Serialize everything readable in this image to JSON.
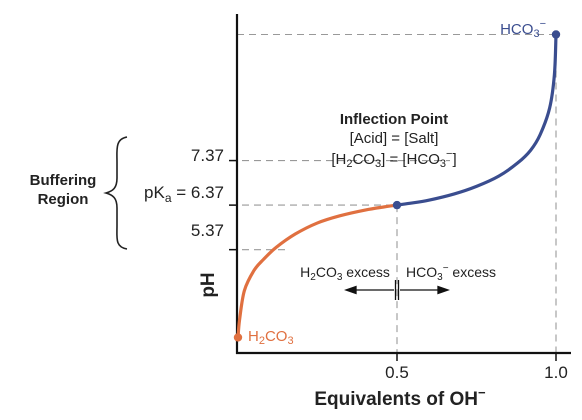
{
  "chart_data": {
    "type": "line",
    "xlabel_main": "Equivalents of OH",
    "xlabel_sup": "−",
    "ylabel": "pH",
    "x_ticks": [
      {
        "value": 0.5,
        "label": "0.5"
      },
      {
        "value": 1.0,
        "label": "1.0"
      }
    ],
    "y_ticks": [
      {
        "value": 7.37,
        "label": "7.37"
      },
      {
        "value": 5.37,
        "label": "5.37"
      }
    ],
    "pka": {
      "prefix": "pK",
      "sub": "a",
      "suffix": " = 6.37",
      "value": 6.37
    },
    "series": [
      {
        "color": "#e07040",
        "x": [
          0.0,
          0.005,
          0.02,
          0.05,
          0.08,
          0.12,
          0.18,
          0.25,
          0.32,
          0.4,
          0.46,
          0.5
        ],
        "y": [
          3.4,
          3.8,
          4.45,
          4.9,
          5.15,
          5.42,
          5.72,
          5.97,
          6.13,
          6.26,
          6.33,
          6.37
        ]
      },
      {
        "color": "#3a4d8f",
        "x": [
          0.5,
          0.54,
          0.6,
          0.68,
          0.75,
          0.82,
          0.88,
          0.92,
          0.95,
          0.98,
          0.995,
          1.0
        ],
        "y": [
          6.37,
          6.41,
          6.48,
          6.62,
          6.79,
          7.02,
          7.32,
          7.6,
          7.95,
          8.55,
          9.3,
          10.2
        ]
      }
    ],
    "points": [
      {
        "name": "start",
        "x": 0.0,
        "y": 3.4,
        "color": "#e07040"
      },
      {
        "name": "inflection",
        "x": 0.5,
        "y": 6.37,
        "color": "#3a4d8f"
      },
      {
        "name": "end",
        "x": 1.0,
        "y": 10.2,
        "color": "#3a4d8f"
      }
    ],
    "xlim": [
      0,
      1.0
    ],
    "ylim": [
      3.05,
      10.75
    ],
    "colors": {
      "acid": "#e07040",
      "base": "#3a4d8f",
      "guide": "#999999"
    }
  },
  "labels": {
    "start_label": {
      "a": "H",
      "sub": "2",
      "b": "CO",
      "sub2": "3"
    },
    "end_label": {
      "a": "HCO",
      "sub": "3",
      "sup": "−"
    },
    "buffering_line1": "Buffering",
    "buffering_line2": "Region",
    "inflection_title": "Inflection Point",
    "inflection_eq1": "[Acid] = [Salt]",
    "inflection_eq2": {
      "a": "[H",
      "s1": "2",
      "b": "CO",
      "s2": "3",
      "c": "] = [HCO",
      "s3": "3",
      "sup": "−",
      "d": "]"
    },
    "excess_left": {
      "a": "H",
      "s1": "2",
      "b": "CO",
      "s2": "3",
      "c": " excess"
    },
    "excess_right": {
      "a": "HCO",
      "s1": "3",
      "sup": "−",
      "c": " excess"
    }
  }
}
